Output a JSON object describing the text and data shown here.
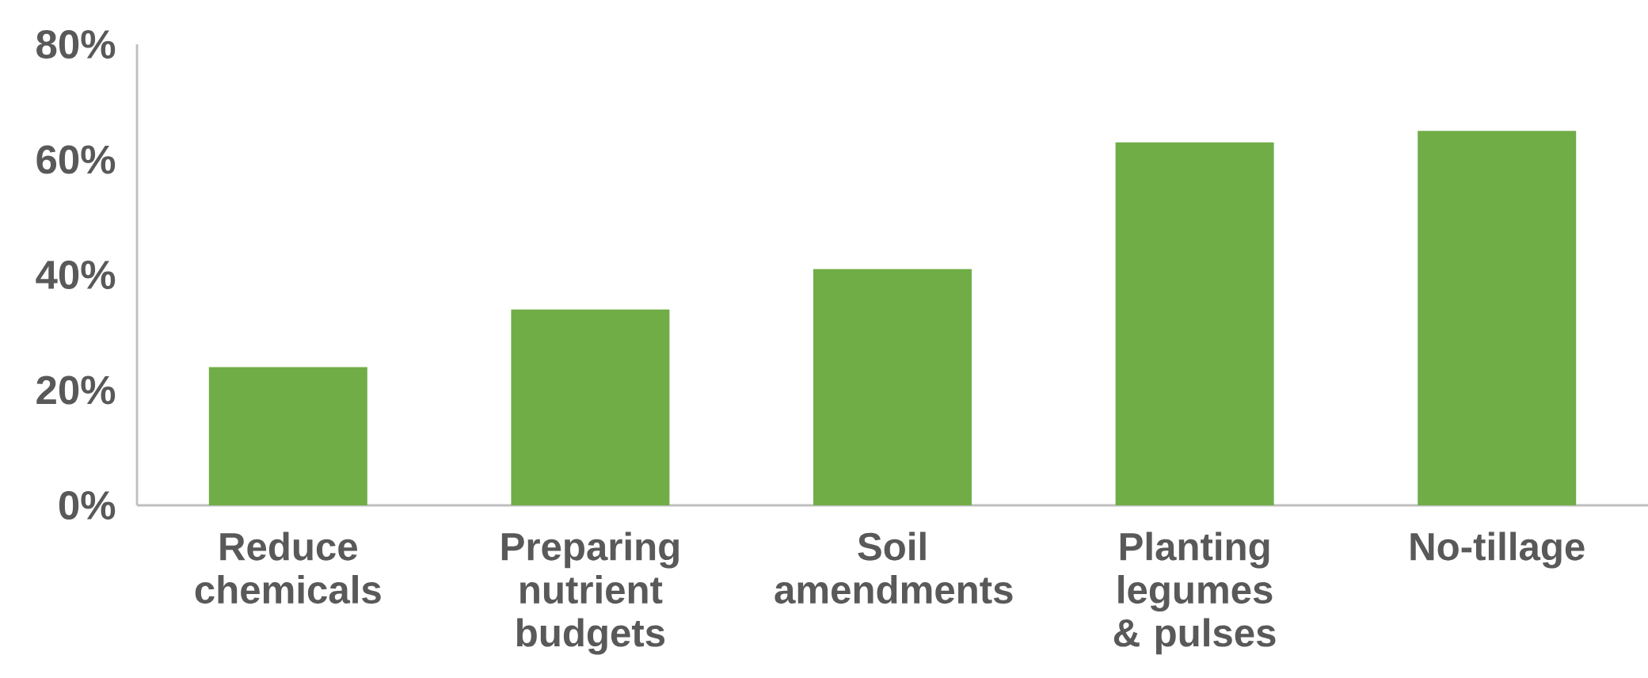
{
  "chart_data": {
    "type": "bar",
    "categories": [
      "Reduce chemicals",
      "Preparing nutrient budgets",
      "Soil amendments",
      "Planting legumes & pulses",
      "No-tillage"
    ],
    "values": [
      24,
      34,
      41,
      63,
      65
    ],
    "color": "#70ad47",
    "ylim": [
      0,
      80
    ],
    "yticks": [
      {
        "value": 0,
        "label": "0%"
      },
      {
        "value": 20,
        "label": "20%"
      },
      {
        "value": 40,
        "label": "40%"
      },
      {
        "value": 60,
        "label": "60%"
      },
      {
        "value": 80,
        "label": "80%"
      }
    ],
    "grid": false
  }
}
